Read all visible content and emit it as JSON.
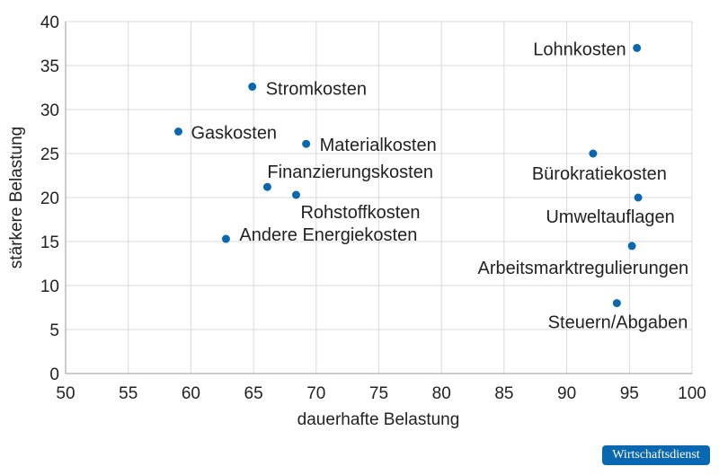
{
  "chart_data": {
    "type": "scatter",
    "title": "",
    "xlabel": "dauerhafte Belastung",
    "ylabel": "stärkere  Belastung",
    "xlim": [
      50,
      100
    ],
    "ylim": [
      0,
      40
    ],
    "xticks": [
      50,
      55,
      60,
      65,
      70,
      75,
      80,
      85,
      90,
      95,
      100
    ],
    "yticks": [
      0,
      5,
      10,
      15,
      20,
      25,
      30,
      35,
      40
    ],
    "grid": true,
    "point_color": "#0a68b0",
    "points": [
      {
        "label": "Lohnkosten",
        "x": 95.6,
        "y": 37.0
      },
      {
        "label": "Stromkosten",
        "x": 64.9,
        "y": 32.6
      },
      {
        "label": "Gaskosten",
        "x": 59.0,
        "y": 27.5
      },
      {
        "label": "Materialkosten",
        "x": 69.2,
        "y": 26.1
      },
      {
        "label": "Bürokratiekosten",
        "x": 92.1,
        "y": 25.0
      },
      {
        "label": "Finanzierungskosten",
        "x": 66.1,
        "y": 21.2
      },
      {
        "label": "Rohstoffkosten",
        "x": 68.4,
        "y": 20.3
      },
      {
        "label": "Umweltauflagen",
        "x": 95.7,
        "y": 20.0
      },
      {
        "label": "Andere Energiekosten",
        "x": 62.8,
        "y": 15.3
      },
      {
        "label": "Arbeitsmarktregulierungen",
        "x": 95.2,
        "y": 14.5
      },
      {
        "label": "Steuern/Abgaben",
        "x": 94.0,
        "y": 8.0
      }
    ]
  },
  "logo": {
    "text": "Wirtschaftsdienst",
    "color": "#0a68b0"
  }
}
